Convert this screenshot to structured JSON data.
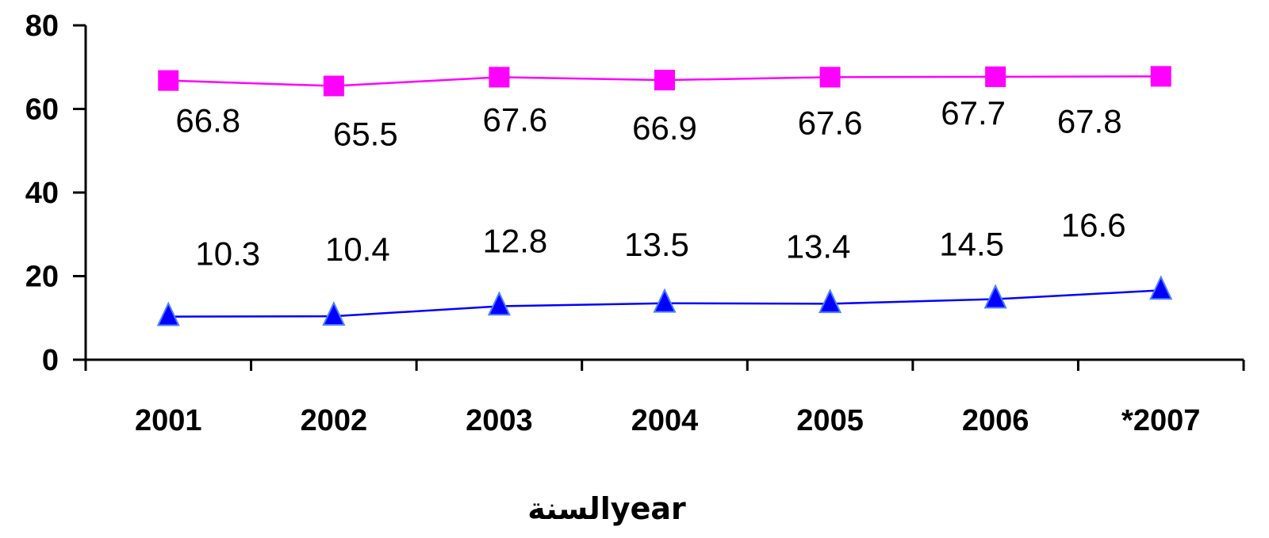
{
  "chart_data": {
    "type": "line",
    "categories": [
      "2001",
      "2002",
      "2003",
      "2004",
      "2005",
      "2006",
      "*2007"
    ],
    "xlabel": "السنةyear",
    "ylabel": "",
    "ylim": [
      0,
      80
    ],
    "yticks": [
      "0",
      "20",
      "40",
      "60",
      "80"
    ],
    "grid": false,
    "series": [
      {
        "values": [
          66.8,
          65.5,
          67.6,
          66.9,
          67.6,
          67.7,
          67.8
        ],
        "labels": [
          "66.8",
          "65.5",
          "67.6",
          "66.9",
          "67.6",
          "67.7",
          "67.8"
        ],
        "color": "#ff00ff",
        "marker": "square"
      },
      {
        "values": [
          10.3,
          10.4,
          12.8,
          13.5,
          13.4,
          14.5,
          16.6
        ],
        "labels": [
          "10.3",
          "10.4",
          "12.8",
          "13.5",
          "13.4",
          "14.5",
          "16.6"
        ],
        "color": "#0000ff",
        "marker": "triangle"
      }
    ]
  }
}
